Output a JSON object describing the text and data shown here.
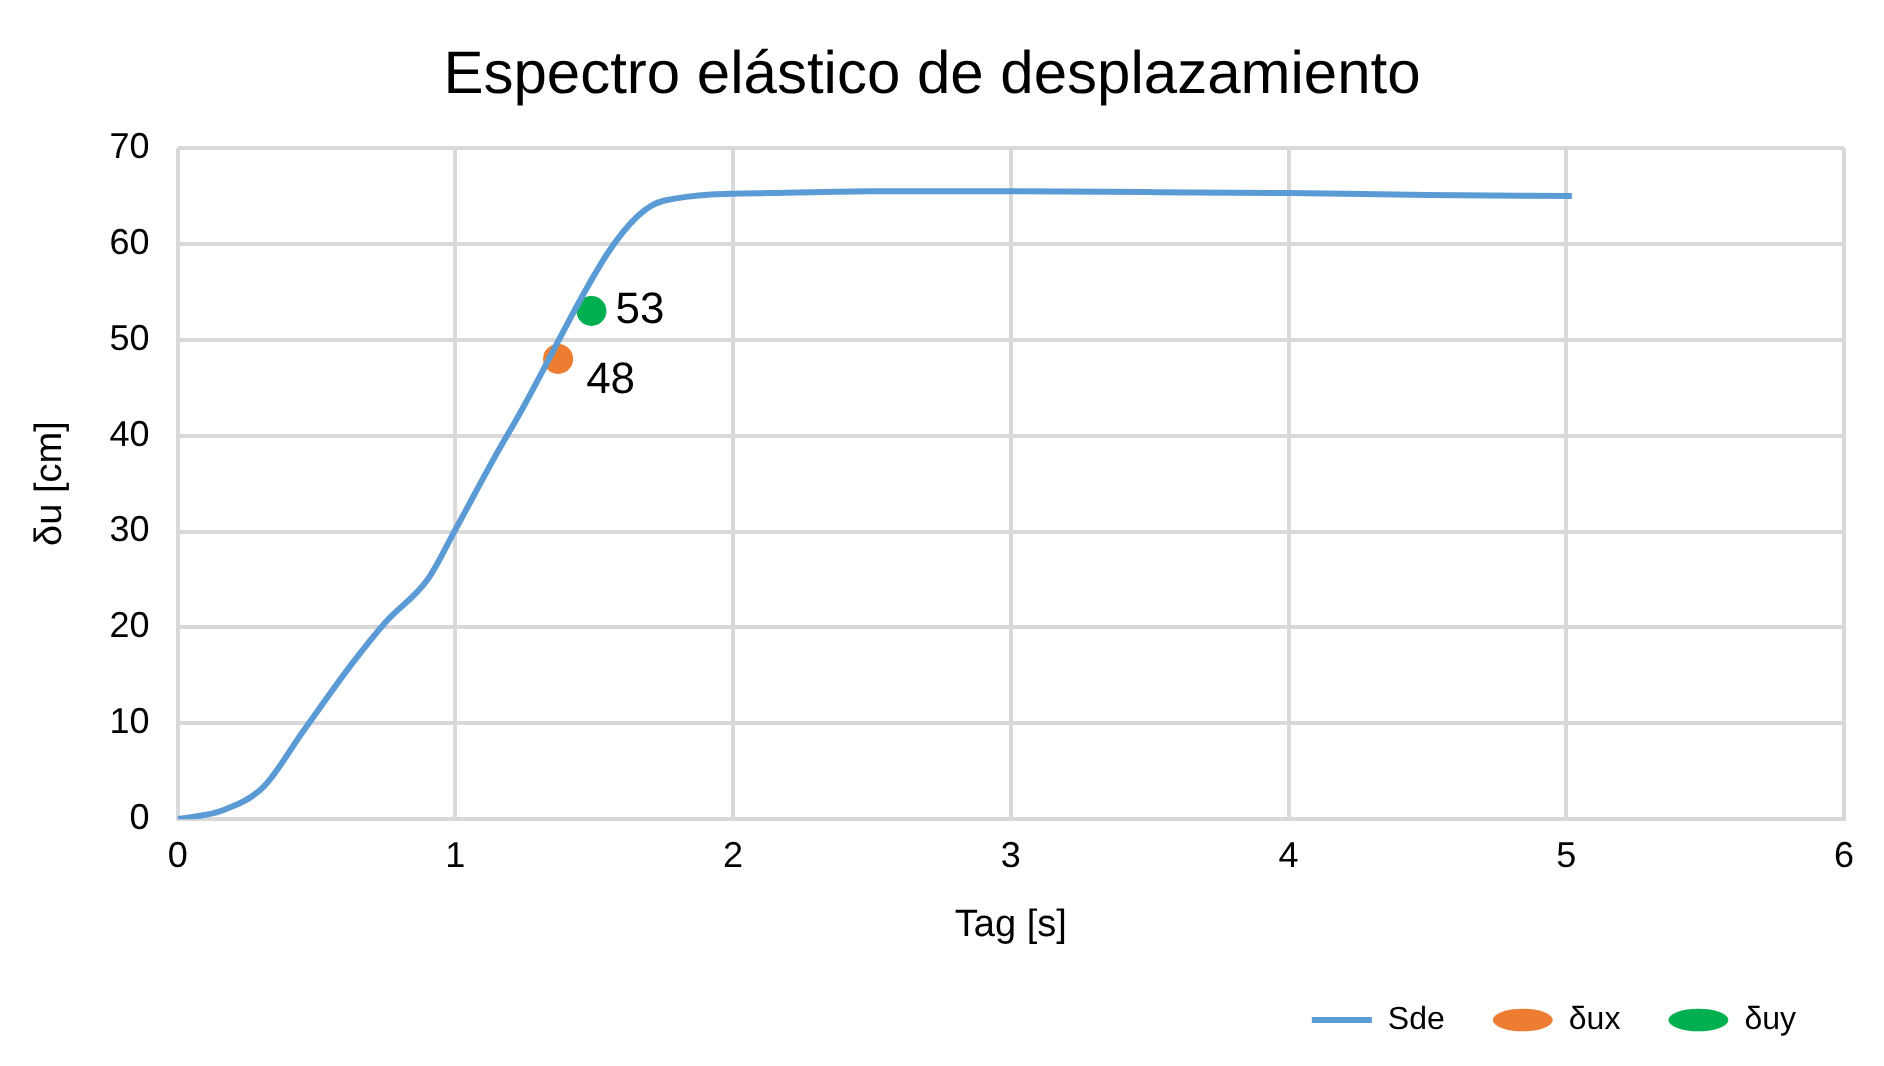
{
  "chart_data": {
    "type": "line",
    "title": "Espectro elástico de desplazamiento",
    "xlabel": "Tag [s]",
    "ylabel": "δu [cm]",
    "xlim": [
      0,
      6
    ],
    "xticks": [
      0,
      1,
      2,
      3,
      4,
      5,
      6
    ],
    "ylim": [
      0,
      70
    ],
    "yticks": [
      0,
      10,
      20,
      30,
      40,
      50,
      60,
      70
    ],
    "grid": true,
    "legend": "bottom right",
    "series": [
      {
        "name": "Sde",
        "type": "line",
        "color": "#5b9bd5",
        "marker": "none",
        "x": [
          0,
          0.16,
          0.31,
          0.45,
          0.63,
          0.75,
          0.9,
          1.0,
          1.19,
          1.75,
          2.13,
          2.5,
          3,
          3.5,
          4,
          4.5,
          5.02
        ],
        "values": [
          0,
          0.9,
          3.4,
          9.1,
          16.3,
          20.6,
          25,
          30.2,
          40.2,
          64.5,
          65.3,
          65.5,
          65.5,
          65.4,
          65.3,
          65.1,
          65
        ]
      },
      {
        "name": "δux",
        "type": "scatter",
        "color": "#ed7d31",
        "marker": "circle",
        "data_labels": true,
        "x": [
          1.37
        ],
        "values": [
          48
        ]
      },
      {
        "name": "δuy",
        "type": "scatter",
        "color": "#00b050",
        "marker": "circle",
        "data_labels": true,
        "x": [
          1.49
        ],
        "values": [
          53
        ]
      }
    ]
  }
}
